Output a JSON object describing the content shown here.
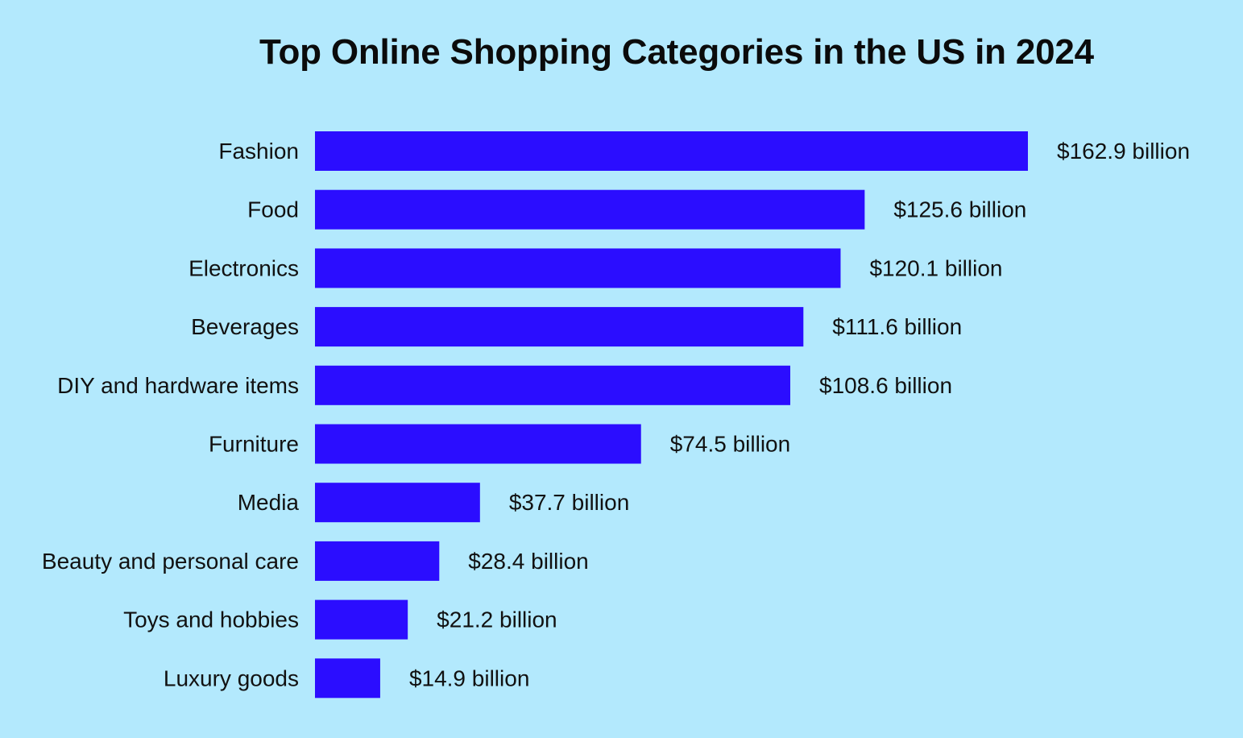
{
  "colors": {
    "background": "#b3e9fd",
    "bar": "#2b0dff",
    "text": "#111111"
  },
  "chart_data": {
    "type": "bar",
    "orientation": "horizontal",
    "title": "Top Online Shopping Categories in the US in 2024",
    "xlabel": "",
    "ylabel": "",
    "unit": "billion USD",
    "grid": false,
    "legend": "none",
    "xlim": [
      0,
      162.9
    ],
    "categories": [
      "Fashion",
      "Food",
      "Electronics",
      "Beverages",
      "DIY and hardware items",
      "Furniture",
      "Media",
      "Beauty and personal care",
      "Toys and hobbies",
      "Luxury goods"
    ],
    "values": [
      162.9,
      125.6,
      120.1,
      111.6,
      108.6,
      74.5,
      37.7,
      28.4,
      21.2,
      14.9
    ],
    "data_labels": [
      "$162.9 billion",
      "$125.6 billion",
      "$120.1 billion",
      "$111.6 billion",
      "$108.6 billion",
      "$74.5 billion",
      "$37.7 billion",
      "$28.4 billion",
      "$21.2 billion",
      "$14.9 billion"
    ]
  }
}
